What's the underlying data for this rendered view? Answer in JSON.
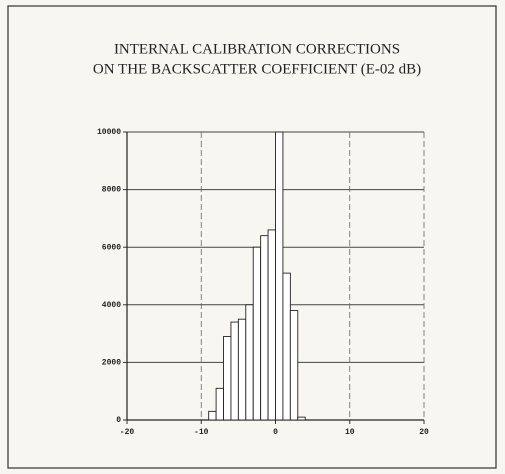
{
  "chart_data": {
    "type": "histogram",
    "title": [
      "INTERNAL CALIBRATION CORRECTIONS",
      "ON THE BACKSCATTER COEFFICIENT (E-02 dB)"
    ],
    "bins": [
      -9,
      -8,
      -7,
      -6,
      -5,
      -4,
      -3,
      -2,
      -1,
      0,
      1,
      2,
      3,
      4
    ],
    "values": [
      300,
      1100,
      2900,
      3400,
      3500,
      4000,
      6000,
      6400,
      6600,
      10000,
      5100,
      3800,
      100
    ],
    "color": "#ffffff",
    "xlim": [
      -20,
      20
    ],
    "xticks": [
      -20,
      -10,
      0,
      10,
      20
    ],
    "ylim": [
      0,
      10000
    ],
    "yticks": [
      0,
      2000,
      4000,
      6000,
      8000,
      10000
    ],
    "grid": true
  }
}
